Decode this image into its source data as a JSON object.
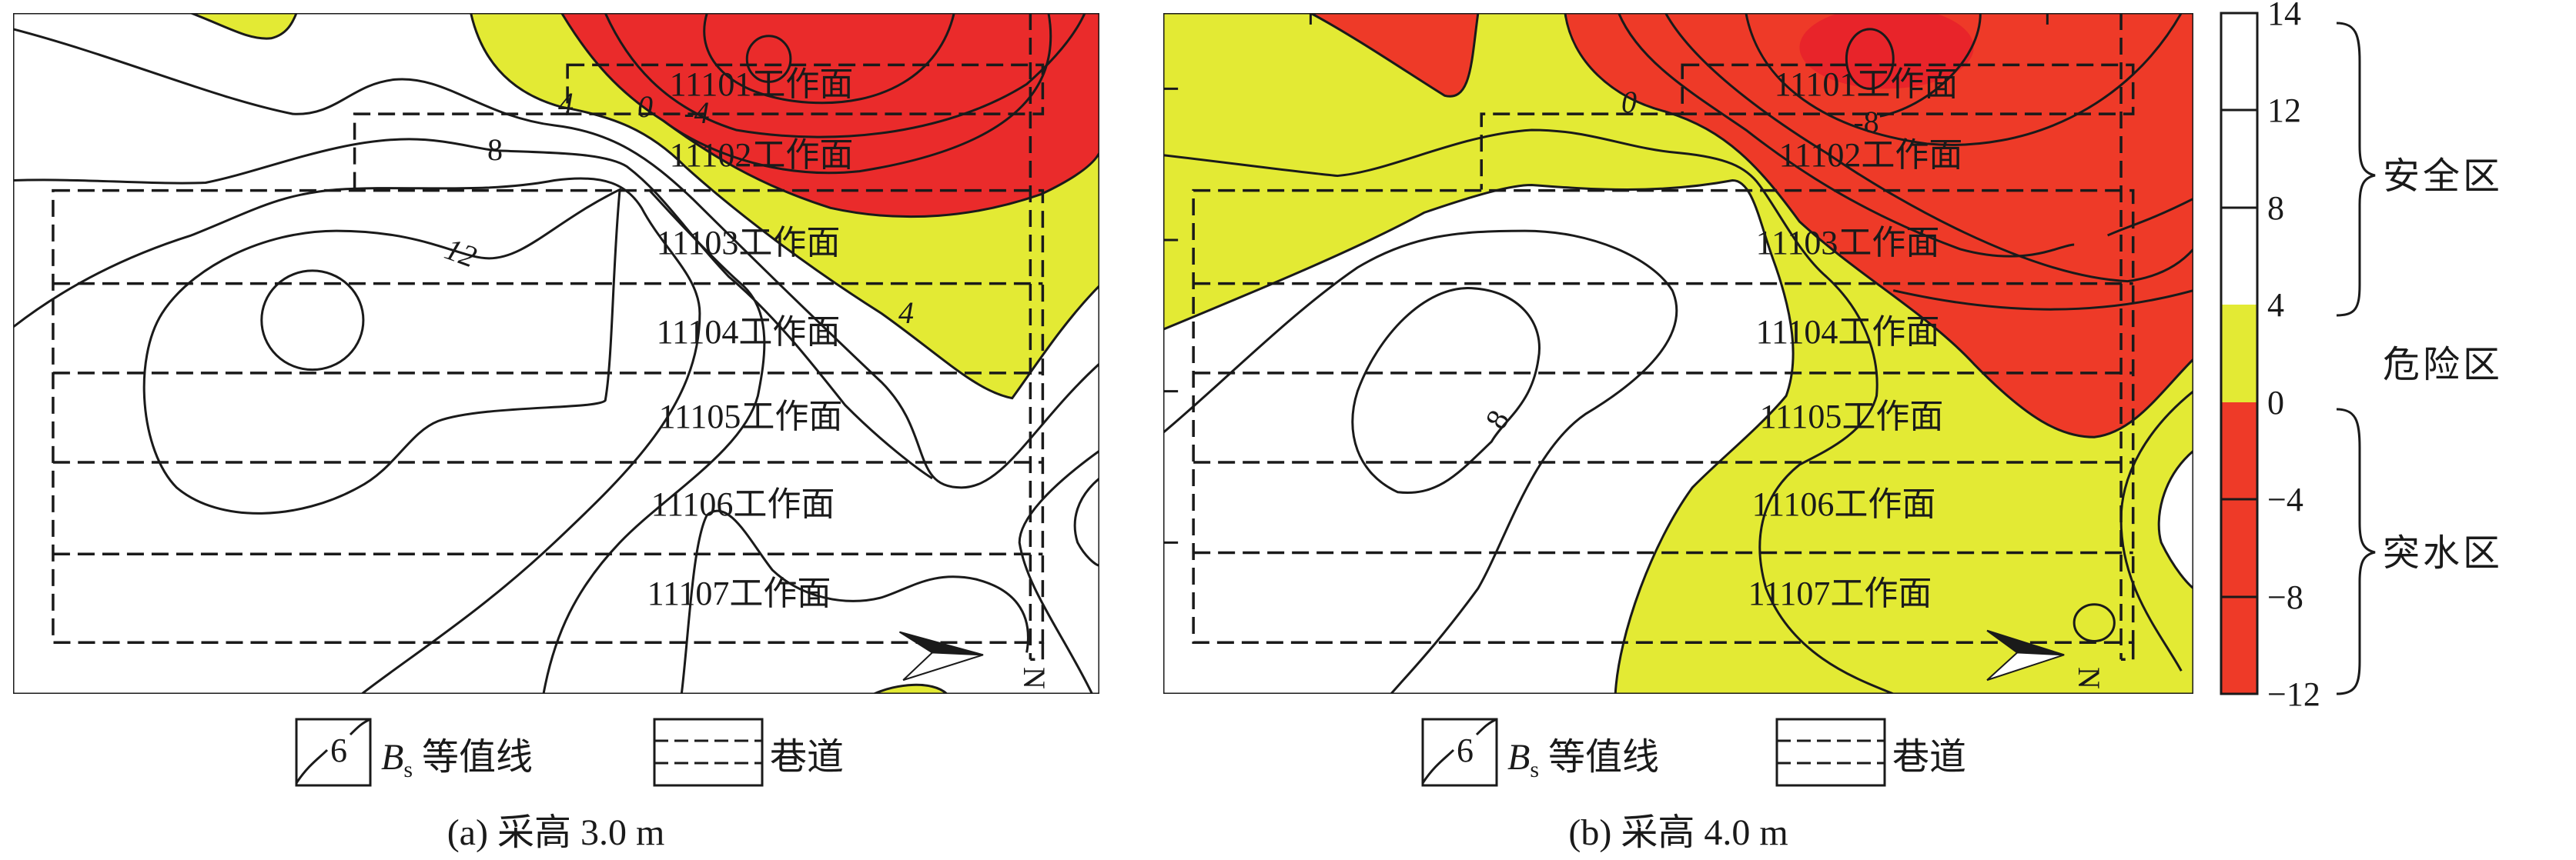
{
  "colors": {
    "safe": "#ffffff",
    "danger": "#e3ea34",
    "inrush_a": "#ea2b2b",
    "inrush_b": "#ee3a28",
    "line": "#1a1a1a"
  },
  "panels": [
    {
      "caption": "(a) 采高 3.0 m",
      "workfaces": [
        "11101工作面",
        "11102工作面",
        "11103工作面",
        "11104工作面",
        "11105工作面",
        "11106工作面",
        "11107工作面"
      ],
      "contour_labels": [
        "8",
        "12",
        "4",
        "0",
        "-4",
        "4"
      ],
      "north_label": "N"
    },
    {
      "caption": "(b) 采高 4.0 m",
      "workfaces": [
        "11101工作面",
        "11102工作面",
        "11103工作面",
        "11104工作面",
        "11105工作面",
        "11106工作面",
        "11107工作面"
      ],
      "contour_labels": [
        "0",
        "-8",
        "8"
      ],
      "north_label": "N"
    }
  ],
  "legend": {
    "contour_sample": "6",
    "contour_symbol": "B",
    "contour_subscript": "s",
    "contour_text": "等值线",
    "roadway_text": "巷道",
    "contour_icon": "contour-line-icon",
    "roadway_icon": "dashed-roadway-icon"
  },
  "colorbar": {
    "ticks": [
      "14",
      "12",
      "8",
      "4",
      "0",
      "−4",
      "−8",
      "−12"
    ],
    "zones": [
      {
        "label": "安全区",
        "range": [
          4,
          14
        ]
      },
      {
        "label": "危险区",
        "range": [
          0,
          4
        ]
      },
      {
        "label": "突水区",
        "range": [
          -12,
          0
        ]
      }
    ]
  }
}
